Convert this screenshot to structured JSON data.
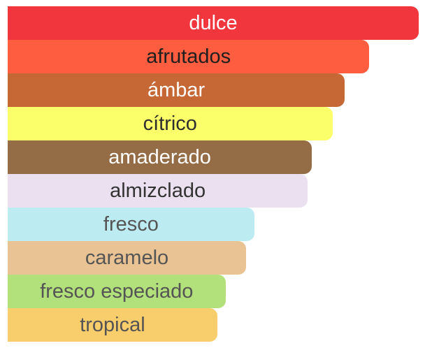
{
  "chart_data": {
    "type": "bar",
    "orientation": "horizontal",
    "title": "",
    "xlabel": "",
    "ylabel": "",
    "xlim": [
      0,
      100
    ],
    "grid": false,
    "legend": "none",
    "categories": [
      "dulce",
      "afrutados",
      "ámbar",
      "cítrico",
      "amaderado",
      "almizclado",
      "fresco",
      "caramelo",
      "fresco especiado",
      "tropical"
    ],
    "values": [
      100,
      88,
      82,
      79,
      74,
      73,
      60,
      58,
      53,
      51
    ],
    "colors": [
      "#f2363e",
      "#fe5e3f",
      "#c56836",
      "#fbff69",
      "#946c45",
      "#ebe0ef",
      "#bdebf2",
      "#e9c393",
      "#b2e07a",
      "#f8cd6c"
    ],
    "label_colors": [
      "#ffffff",
      "#1e1e1e",
      "#ffffff",
      "#2e2e2e",
      "#ffffff",
      "#333333",
      "#555555",
      "#555555",
      "#555555",
      "#555555"
    ]
  }
}
